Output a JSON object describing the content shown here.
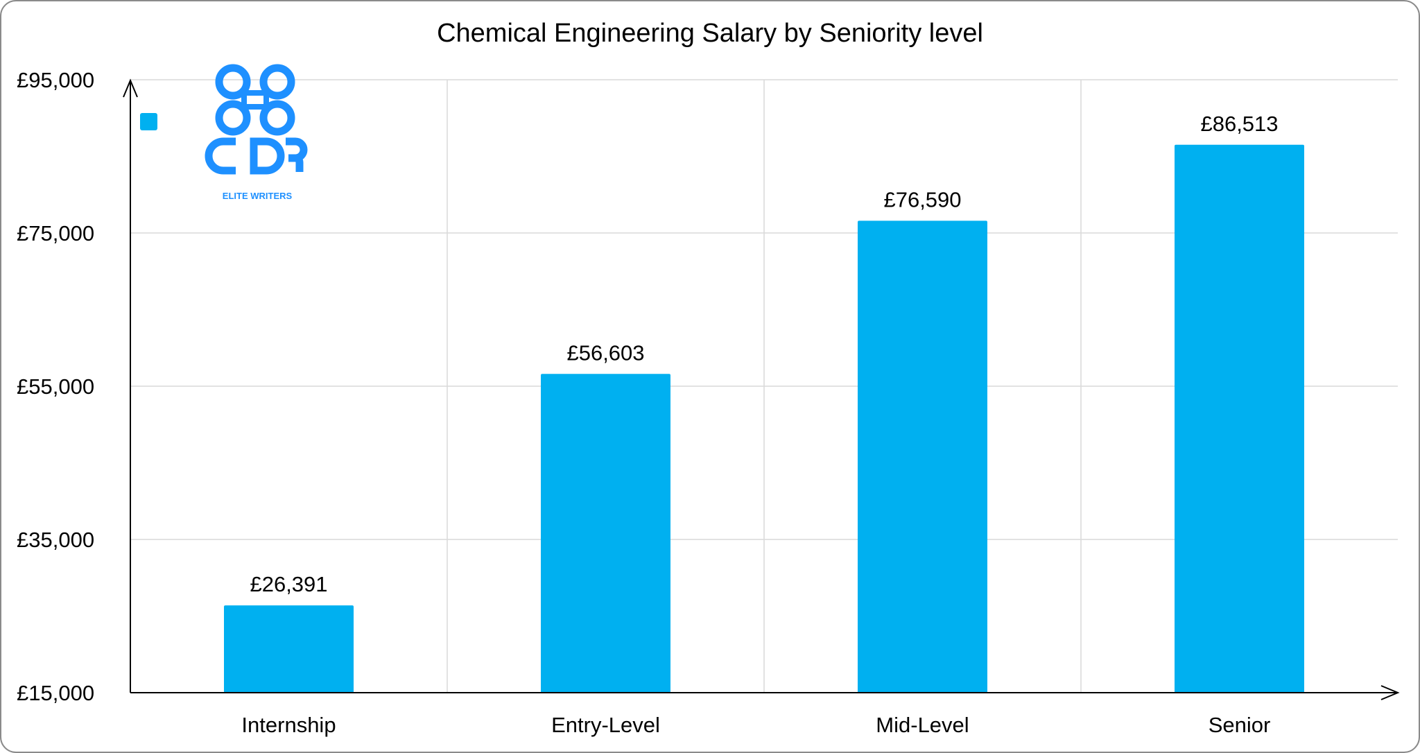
{
  "chart_data": {
    "type": "bar",
    "title": "Chemical Engineering Salary by Seniority level",
    "xlabel": "",
    "ylabel": "",
    "categories": [
      "Internship",
      "Entry-Level",
      "Mid-Level",
      "Senior"
    ],
    "values": [
      26391,
      56603,
      76590,
      86513
    ],
    "data_labels": [
      "£26,391",
      "£56,603",
      "£76,590",
      "£86,513"
    ],
    "ylim": [
      15000,
      95000
    ],
    "yticks": [
      15000,
      35000,
      55000,
      75000,
      95000
    ],
    "ytick_labels": [
      "£15,000",
      "£35,000",
      "£55,000",
      "£75,000",
      "£95,000"
    ],
    "grid": true,
    "legend": "top-left, marker only",
    "colors": {
      "bar": "#00B0F0",
      "logo": "#1E90FF",
      "grid": "#D9D9D9"
    }
  },
  "logo": {
    "text": "CDR",
    "subtext": "ELITE WRITERS"
  }
}
